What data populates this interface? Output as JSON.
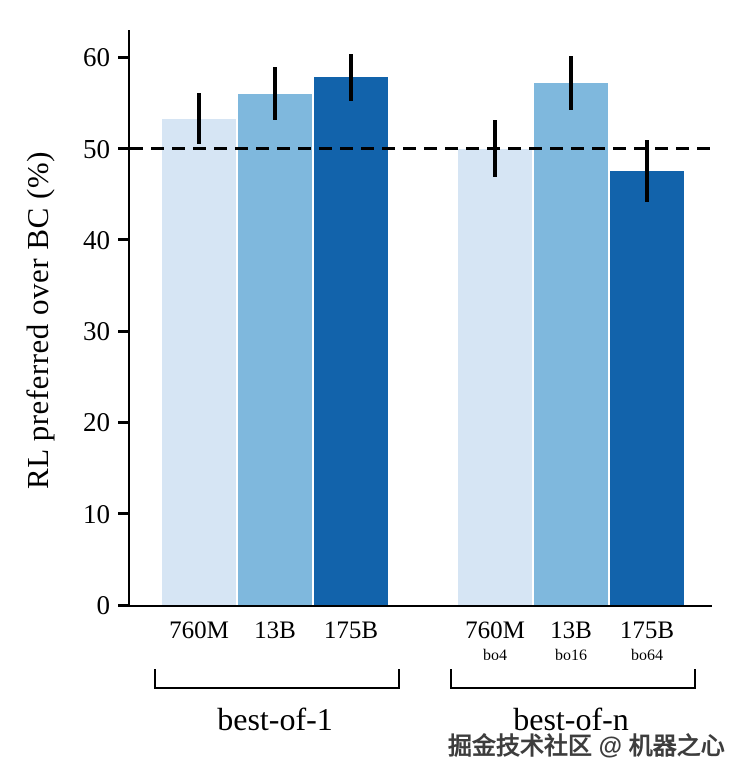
{
  "figure": {
    "watermark": "掘金技术社区 @ 机器之心"
  },
  "chart_data": {
    "type": "bar",
    "title": "",
    "xlabel": "",
    "ylabel": "RL preferred over BC (%)",
    "ylim": [
      0,
      63
    ],
    "yticks": [
      0,
      10,
      20,
      30,
      40,
      50,
      60
    ],
    "reference_line_y": 50,
    "grid": false,
    "legend": null,
    "groups": [
      {
        "label": "best-of-1",
        "bars": [
          {
            "model": "760M",
            "sublabel": "",
            "value": 53.3,
            "err": 2.8,
            "color": "#d6e5f4"
          },
          {
            "model": "13B",
            "sublabel": "",
            "value": 56.0,
            "err": 2.9,
            "color": "#7fb8dd"
          },
          {
            "model": "175B",
            "sublabel": "",
            "value": 57.8,
            "err": 2.6,
            "color": "#1263ab"
          }
        ]
      },
      {
        "label": "best-of-n",
        "bars": [
          {
            "model": "760M",
            "sublabel": "bo4",
            "value": 50.0,
            "err": 3.1,
            "color": "#d6e5f4"
          },
          {
            "model": "13B",
            "sublabel": "bo16",
            "value": 57.2,
            "err": 3.0,
            "color": "#7fb8dd"
          },
          {
            "model": "175B",
            "sublabel": "bo64",
            "value": 47.5,
            "err": 3.4,
            "color": "#1263ab"
          }
        ]
      }
    ]
  }
}
